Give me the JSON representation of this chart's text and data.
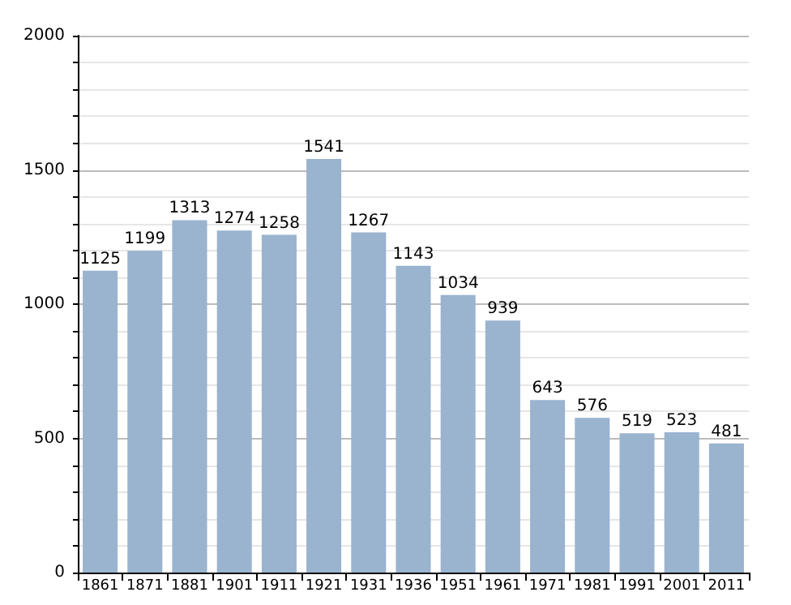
{
  "chart_data": {
    "type": "bar",
    "categories": [
      "1861",
      "1871",
      "1881",
      "1901",
      "1911",
      "1921",
      "1931",
      "1936",
      "1951",
      "1961",
      "1971",
      "1981",
      "1991",
      "2001",
      "2011"
    ],
    "values": [
      1125,
      1199,
      1313,
      1274,
      1258,
      1541,
      1267,
      1143,
      1034,
      939,
      643,
      576,
      519,
      523,
      481
    ],
    "color": "#9ab3cf",
    "ylim": [
      0,
      2000
    ],
    "yticks": [
      0,
      {
        "value": 100,
        "label": null
      },
      {
        "value": 200,
        "label": null
      },
      {
        "value": 300,
        "label": null
      },
      {
        "value": 400,
        "label": null
      },
      500,
      {
        "value": 600,
        "label": null
      },
      {
        "value": 700,
        "label": null
      },
      {
        "value": 800,
        "label": null
      },
      {
        "value": 900,
        "label": null
      },
      1000,
      {
        "value": 1100,
        "label": null
      },
      {
        "value": 1200,
        "label": null
      },
      {
        "value": 1300,
        "label": null
      },
      {
        "value": 1400,
        "label": null
      },
      1500,
      {
        "value": 1600,
        "label": null
      },
      {
        "value": 1700,
        "label": null
      },
      {
        "value": 1800,
        "label": null
      },
      {
        "value": 1900,
        "label": null
      },
      2000
    ],
    "grid": "y",
    "data_labels": true
  }
}
